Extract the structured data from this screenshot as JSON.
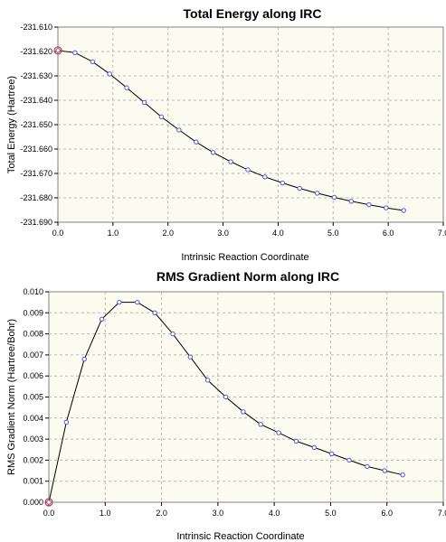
{
  "chart_data": [
    {
      "type": "line",
      "title": "Total Energy along IRC",
      "xlabel": "Intrinsic Reaction Coordinate",
      "ylabel": "Total Energy (Hartree)",
      "xlim": [
        0.0,
        7.0
      ],
      "ylim": [
        -231.69,
        -231.61
      ],
      "x_ticks": [
        0.0,
        1.0,
        2.0,
        3.0,
        4.0,
        5.0,
        6.0,
        7.0
      ],
      "x_tick_labels": [
        "0.0",
        "1.0",
        "2.0",
        "3.0",
        "4.0",
        "5.0",
        "6.0",
        "7.0"
      ],
      "y_ticks": [
        -231.61,
        -231.62,
        -231.63,
        -231.64,
        -231.65,
        -231.66,
        -231.67,
        -231.68,
        -231.69
      ],
      "y_tick_labels": [
        "-231.610",
        "-231.620",
        "-231.630",
        "-231.640",
        "-231.650",
        "-231.660",
        "-231.670",
        "-231.680",
        "-231.690"
      ],
      "grid": true,
      "background": "#fbfbef",
      "line_color": "#000000",
      "marker_color": "#4b5bd6",
      "highlight_color": "#e03030",
      "highlight_index": 0,
      "x": [
        0.0,
        0.31,
        0.63,
        0.94,
        1.25,
        1.57,
        1.88,
        2.2,
        2.51,
        2.82,
        3.14,
        3.45,
        3.76,
        4.08,
        4.39,
        4.71,
        5.02,
        5.33,
        5.65,
        5.96,
        6.28
      ],
      "y": [
        -231.6196,
        -231.6205,
        -231.6242,
        -231.6292,
        -231.6349,
        -231.6409,
        -231.6468,
        -231.6522,
        -231.6571,
        -231.6614,
        -231.6652,
        -231.6685,
        -231.6714,
        -231.6739,
        -231.6761,
        -231.6781,
        -231.6798,
        -231.6814,
        -231.6828,
        -231.6841,
        -231.6852
      ]
    },
    {
      "type": "line",
      "title": "RMS Gradient Norm along IRC",
      "xlabel": "Intrinsic Reaction Coordinate",
      "ylabel": "RMS Gradient Norm (Hartree/Bohr)",
      "xlim": [
        0.0,
        7.0
      ],
      "ylim": [
        0.0,
        0.01
      ],
      "x_ticks": [
        0.0,
        1.0,
        2.0,
        3.0,
        4.0,
        5.0,
        6.0,
        7.0
      ],
      "x_tick_labels": [
        "0.0",
        "1.0",
        "2.0",
        "3.0",
        "4.0",
        "5.0",
        "6.0",
        "7.0"
      ],
      "y_ticks": [
        0.0,
        0.001,
        0.002,
        0.003,
        0.004,
        0.005,
        0.006,
        0.007,
        0.008,
        0.009,
        0.01
      ],
      "y_tick_labels": [
        "0.000",
        "0.001",
        "0.002",
        "0.003",
        "0.004",
        "0.005",
        "0.006",
        "0.007",
        "0.008",
        "0.009",
        "0.010"
      ],
      "grid": true,
      "background": "#fbfbef",
      "line_color": "#000000",
      "marker_color": "#4b5bd6",
      "highlight_color": "#e03030",
      "highlight_index": 0,
      "x": [
        0.0,
        0.31,
        0.63,
        0.94,
        1.25,
        1.57,
        1.88,
        2.2,
        2.51,
        2.82,
        3.14,
        3.45,
        3.76,
        4.08,
        4.39,
        4.71,
        5.02,
        5.33,
        5.65,
        5.96,
        6.28
      ],
      "y": [
        0.0,
        0.0038,
        0.0068,
        0.0087,
        0.0095,
        0.0095,
        0.009,
        0.008,
        0.0069,
        0.0058,
        0.005,
        0.0043,
        0.0037,
        0.0033,
        0.0029,
        0.0026,
        0.0023,
        0.002,
        0.0017,
        0.0015,
        0.0013
      ]
    }
  ]
}
